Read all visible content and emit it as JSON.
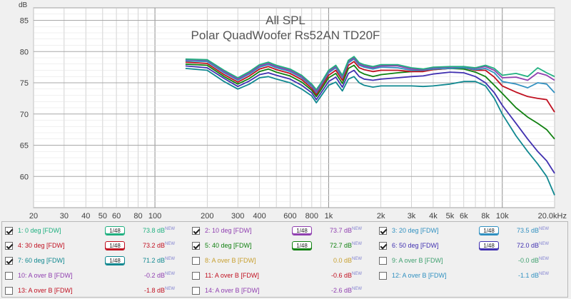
{
  "chart_data": {
    "type": "line",
    "title": "All SPL",
    "subtitle": "Polar QuadWoofer Rs52AN TD20F",
    "ylabel": "dB",
    "xlabel": "",
    "x_scale": "log",
    "xlim": [
      20,
      20000
    ],
    "ylim": [
      55,
      87
    ],
    "y_ticks": [
      60,
      65,
      70,
      75,
      80,
      85
    ],
    "x_ticks": [
      {
        "v": 20,
        "label": "20"
      },
      {
        "v": 30,
        "label": "30"
      },
      {
        "v": 40,
        "label": "40"
      },
      {
        "v": 50,
        "label": "50"
      },
      {
        "v": 60,
        "label": "60"
      },
      {
        "v": 80,
        "label": "80"
      },
      {
        "v": 100,
        "label": "100"
      },
      {
        "v": 200,
        "label": "200"
      },
      {
        "v": 300,
        "label": "300"
      },
      {
        "v": 400,
        "label": "400"
      },
      {
        "v": 600,
        "label": "600"
      },
      {
        "v": 800,
        "label": "800"
      },
      {
        "v": 1000,
        "label": "1k"
      },
      {
        "v": 2000,
        "label": "2k"
      },
      {
        "v": 3000,
        "label": "3k"
      },
      {
        "v": 4000,
        "label": "4k"
      },
      {
        "v": 5000,
        "label": "5k"
      },
      {
        "v": 6000,
        "label": "6k"
      },
      {
        "v": 8000,
        "label": "8k"
      },
      {
        "v": 10000,
        "label": "10k"
      },
      {
        "v": 20000,
        "label": "20.0kHz"
      }
    ],
    "grid": true,
    "x": [
      150,
      200,
      250,
      300,
      350,
      400,
      450,
      500,
      600,
      700,
      800,
      850,
      900,
      1000,
      1100,
      1200,
      1300,
      1400,
      1500,
      1600,
      1800,
      2000,
      2500,
      3000,
      3500,
      4000,
      5000,
      6000,
      7000,
      8000,
      9000,
      10000,
      12000,
      14000,
      16000,
      18000,
      20000
    ],
    "series": [
      {
        "name": "1: 0 deg [FDW]",
        "color": "#20b080",
        "values": [
          78.8,
          78.7,
          77.0,
          75.8,
          76.8,
          77.9,
          78.3,
          77.8,
          77.2,
          76.2,
          74.8,
          73.9,
          74.9,
          77.0,
          77.8,
          76.2,
          78.6,
          79.2,
          78.2,
          77.9,
          77.6,
          77.9,
          77.9,
          77.4,
          77.2,
          77.5,
          77.6,
          77.6,
          77.4,
          77.8,
          77.3,
          76.2,
          76.5,
          76.0,
          77.4,
          76.6,
          76.0
        ]
      },
      {
        "name": "2: 10 deg [FDW]",
        "color": "#9040b0",
        "values": [
          78.7,
          78.6,
          76.8,
          75.6,
          76.6,
          77.7,
          78.1,
          77.6,
          77.0,
          76.0,
          74.6,
          73.6,
          74.7,
          76.8,
          77.6,
          76.0,
          78.4,
          79.0,
          78.0,
          77.7,
          77.4,
          77.7,
          77.7,
          77.2,
          77.1,
          77.4,
          77.5,
          77.6,
          77.3,
          77.6,
          77.0,
          75.8,
          75.9,
          75.4,
          76.6,
          76.2,
          75.4
        ]
      },
      {
        "name": "3: 20 deg [FDW]",
        "color": "#3090c0",
        "values": [
          78.5,
          78.4,
          76.6,
          75.4,
          76.4,
          77.5,
          77.9,
          77.4,
          76.8,
          75.8,
          74.4,
          73.4,
          74.5,
          76.6,
          77.4,
          75.8,
          78.2,
          78.8,
          77.8,
          77.5,
          77.2,
          77.5,
          77.4,
          77.0,
          77.0,
          77.2,
          77.3,
          77.4,
          77.1,
          77.3,
          76.6,
          75.2,
          74.8,
          74.2,
          75.0,
          74.8,
          73.4
        ]
      },
      {
        "name": "4: 30 deg [FDW]",
        "color": "#c01020",
        "values": [
          78.3,
          78.1,
          76.3,
          75.1,
          76.1,
          77.2,
          77.6,
          77.1,
          76.5,
          75.5,
          74.1,
          73.1,
          74.2,
          76.2,
          77.0,
          75.4,
          77.8,
          78.4,
          77.4,
          77.1,
          76.8,
          77.0,
          77.0,
          76.8,
          76.8,
          77.1,
          77.3,
          77.4,
          77.0,
          77.0,
          75.9,
          74.5,
          73.5,
          72.8,
          72.5,
          72.3,
          70.3
        ]
      },
      {
        "name": "5: 40 deg [FDW]",
        "color": "#108010",
        "values": [
          78.0,
          77.8,
          76.0,
          74.8,
          75.7,
          76.8,
          77.2,
          76.7,
          76.1,
          75.1,
          73.8,
          72.8,
          73.8,
          75.8,
          76.5,
          74.9,
          77.3,
          77.8,
          76.8,
          76.4,
          76.0,
          76.3,
          76.6,
          76.8,
          76.9,
          77.1,
          77.3,
          77.2,
          76.7,
          76.0,
          74.6,
          73.3,
          71.0,
          69.5,
          68.5,
          67.5,
          66.0
        ]
      },
      {
        "name": "6: 50 deg [FDW]",
        "color": "#4030b0",
        "values": [
          77.7,
          77.4,
          75.7,
          74.4,
          75.3,
          76.3,
          76.6,
          76.2,
          75.6,
          74.6,
          73.4,
          72.3,
          73.3,
          75.2,
          75.9,
          74.3,
          76.5,
          77.0,
          76.0,
          75.6,
          75.4,
          75.6,
          75.8,
          76.0,
          76.1,
          76.4,
          76.7,
          76.6,
          76.0,
          75.0,
          73.4,
          71.4,
          68.5,
          66.0,
          64.0,
          62.5,
          60.5
        ]
      },
      {
        "name": "7: 60 deg [FDW]",
        "color": "#108890",
        "values": [
          77.3,
          77.0,
          75.2,
          74.0,
          74.8,
          75.8,
          76.0,
          75.6,
          75.0,
          74.0,
          72.9,
          71.8,
          72.8,
          74.6,
          75.1,
          73.7,
          75.6,
          76.0,
          75.0,
          74.6,
          74.3,
          74.5,
          74.5,
          74.5,
          74.4,
          74.5,
          74.8,
          75.2,
          75.2,
          74.5,
          72.5,
          70.0,
          66.5,
          64.0,
          62.0,
          60.0,
          57.0
        ]
      }
    ]
  },
  "legend": {
    "rows": [
      [
        {
          "checked": true,
          "label": "1: 0 deg [FDW]",
          "color": "#20b080",
          "smooth": "1/48",
          "value": "73.8 dB",
          "sup": "NEW"
        },
        {
          "checked": true,
          "label": "2: 10 deg [FDW]",
          "color": "#9040b0",
          "smooth": "1/48",
          "value": "73.7 dB",
          "sup": "NEW"
        },
        {
          "checked": true,
          "label": "3: 20 deg [FDW]",
          "color": "#3090c0",
          "smooth": "1/48",
          "value": "73.5 dB",
          "sup": "NEW"
        }
      ],
      [
        {
          "checked": true,
          "label": "4: 30 deg [FDW]",
          "color": "#c01020",
          "smooth": "1/48",
          "value": "73.2 dB",
          "sup": "NEW"
        },
        {
          "checked": true,
          "label": "5: 40 deg [FDW]",
          "color": "#108010",
          "smooth": "1/48",
          "value": "72.7 dB",
          "sup": "NEW"
        },
        {
          "checked": true,
          "label": "6: 50 deg [FDW]",
          "color": "#4030b0",
          "smooth": "1/48",
          "value": "72.0 dB",
          "sup": "NEW"
        }
      ],
      [
        {
          "checked": true,
          "label": "7: 60 deg [FDW]",
          "color": "#108890",
          "smooth": "1/48",
          "value": "71.2 dB",
          "sup": "NEW"
        },
        {
          "checked": false,
          "label": "8: A over B [FDW]",
          "color": "#c8a030",
          "smooth": "",
          "value": "0.0 dB",
          "sup": "NEW"
        },
        {
          "checked": false,
          "label": "9: A over B [FDW]",
          "color": "#40a070",
          "smooth": "",
          "value": "-0.0 dB",
          "sup": "NEW"
        }
      ],
      [
        {
          "checked": false,
          "label": "10: A over B [FDW]",
          "color": "#9040b0",
          "smooth": "",
          "value": "-0.2 dB",
          "sup": "NEW"
        },
        {
          "checked": false,
          "label": "11: A over B [FDW]",
          "color": "#c01020",
          "smooth": "",
          "value": "-0.6 dB",
          "sup": "NEW"
        },
        {
          "checked": false,
          "label": "12: A over B [FDW]",
          "color": "#3090c0",
          "smooth": "",
          "value": "-1.1 dB",
          "sup": "NEW"
        }
      ],
      [
        {
          "checked": false,
          "label": "13: A over B [FDW]",
          "color": "#c01020",
          "smooth": "",
          "value": "-1.8 dB",
          "sup": "NEW"
        },
        {
          "checked": false,
          "label": "14: A over B [FDW]",
          "color": "#9040b0",
          "smooth": "",
          "value": "-2.6 dB",
          "sup": "NEW"
        }
      ]
    ]
  }
}
